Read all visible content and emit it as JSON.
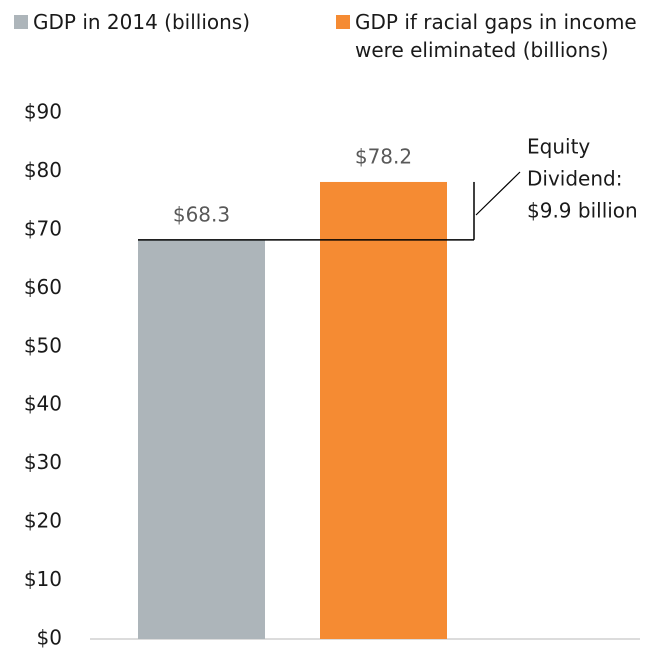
{
  "chart_data": {
    "type": "bar",
    "categories": [
      null
    ],
    "series": [
      {
        "name": "GDP in 2014 (billions)",
        "color": "#adb5ba",
        "values": [
          68.3
        ],
        "value_labels": [
          "$68.3"
        ]
      },
      {
        "name": "GDP if racial gaps in income were eliminated (billions)",
        "color": "#f58b33",
        "values": [
          78.2
        ],
        "value_labels": [
          "$78.2"
        ]
      }
    ],
    "ylim": [
      0,
      90
    ],
    "yticks": [
      {
        "value": 0,
        "label": "$0"
      },
      {
        "value": 10,
        "label": "$10"
      },
      {
        "value": 20,
        "label": "$20"
      },
      {
        "value": 30,
        "label": "$30"
      },
      {
        "value": 40,
        "label": "$40"
      },
      {
        "value": 50,
        "label": "$50"
      },
      {
        "value": 60,
        "label": "$60"
      },
      {
        "value": 70,
        "label": "$70"
      },
      {
        "value": 80,
        "label": "$80"
      },
      {
        "value": 90,
        "label": "$90"
      }
    ],
    "grid": false,
    "annotation": [
      "Equity",
      "Dividend:",
      "$9.9 billion"
    ]
  }
}
